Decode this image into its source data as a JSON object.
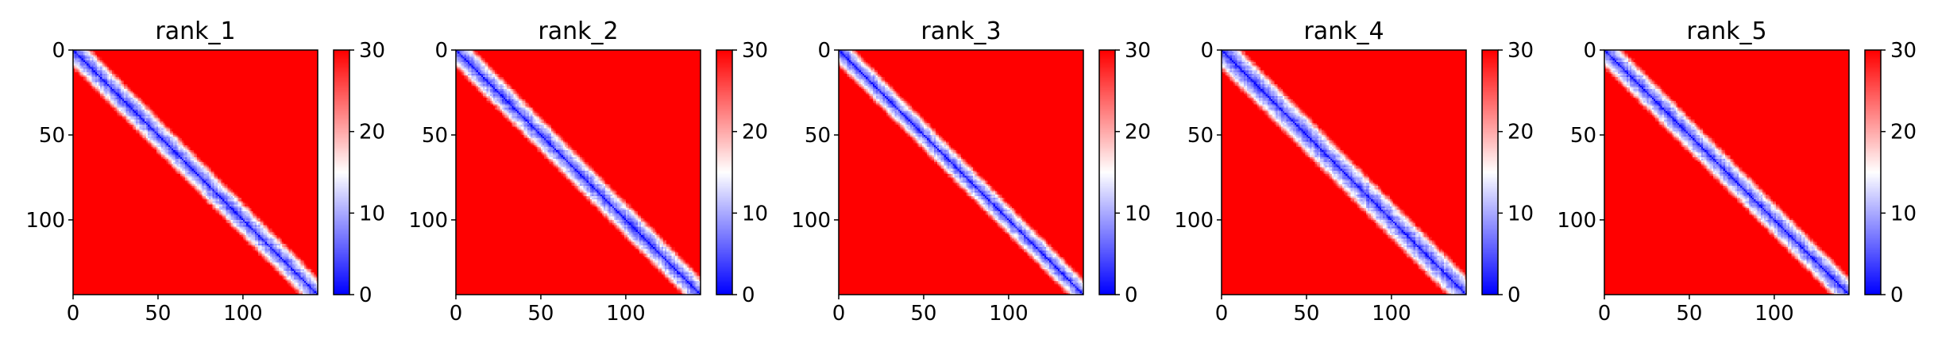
{
  "chart_data": [
    {
      "type": "heatmap",
      "title": "rank_1",
      "matrix_size": 144,
      "xlim": [
        0,
        144
      ],
      "ylim": [
        144,
        0
      ],
      "xticks": [
        "0",
        "50",
        "100"
      ],
      "xtick_values": [
        0,
        50,
        100
      ],
      "yticks": [
        "0",
        "50",
        "100"
      ],
      "ytick_values": [
        0,
        50,
        100
      ],
      "colorbar": {
        "min": 0,
        "max": 30,
        "ticks": [
          "0",
          "10",
          "20",
          "30"
        ],
        "tick_values": [
          0,
          10,
          20,
          30
        ],
        "colormap": [
          "#0000ff",
          "#ffffff",
          "#ff0000"
        ]
      },
      "diagonal_band_width": 7,
      "texture_seed": 11
    },
    {
      "type": "heatmap",
      "title": "rank_2",
      "matrix_size": 144,
      "xlim": [
        0,
        144
      ],
      "ylim": [
        144,
        0
      ],
      "xticks": [
        "0",
        "50",
        "100"
      ],
      "xtick_values": [
        0,
        50,
        100
      ],
      "yticks": [
        "0",
        "50",
        "100"
      ],
      "ytick_values": [
        0,
        50,
        100
      ],
      "colorbar": {
        "min": 0,
        "max": 30,
        "ticks": [
          "0",
          "10",
          "20",
          "30"
        ],
        "tick_values": [
          0,
          10,
          20,
          30
        ],
        "colormap": [
          "#0000ff",
          "#ffffff",
          "#ff0000"
        ]
      },
      "diagonal_band_width": 7,
      "texture_seed": 23
    },
    {
      "type": "heatmap",
      "title": "rank_3",
      "matrix_size": 144,
      "xlim": [
        0,
        144
      ],
      "ylim": [
        144,
        0
      ],
      "xticks": [
        "0",
        "50",
        "100"
      ],
      "xtick_values": [
        0,
        50,
        100
      ],
      "yticks": [
        "0",
        "50",
        "100"
      ],
      "ytick_values": [
        0,
        50,
        100
      ],
      "colorbar": {
        "min": 0,
        "max": 30,
        "ticks": [
          "0",
          "10",
          "20",
          "30"
        ],
        "tick_values": [
          0,
          10,
          20,
          30
        ],
        "colormap": [
          "#0000ff",
          "#ffffff",
          "#ff0000"
        ]
      },
      "diagonal_band_width": 6,
      "texture_seed": 37
    },
    {
      "type": "heatmap",
      "title": "rank_4",
      "matrix_size": 144,
      "xlim": [
        0,
        144
      ],
      "ylim": [
        144,
        0
      ],
      "xticks": [
        "0",
        "50",
        "100"
      ],
      "xtick_values": [
        0,
        50,
        100
      ],
      "yticks": [
        "0",
        "50",
        "100"
      ],
      "ytick_values": [
        0,
        50,
        100
      ],
      "colorbar": {
        "min": 0,
        "max": 30,
        "ticks": [
          "0",
          "10",
          "20",
          "30"
        ],
        "tick_values": [
          0,
          10,
          20,
          30
        ],
        "colormap": [
          "#0000ff",
          "#ffffff",
          "#ff0000"
        ]
      },
      "diagonal_band_width": 8,
      "texture_seed": 53
    },
    {
      "type": "heatmap",
      "title": "rank_5",
      "matrix_size": 144,
      "xlim": [
        0,
        144
      ],
      "ylim": [
        144,
        0
      ],
      "xticks": [
        "0",
        "50",
        "100"
      ],
      "xtick_values": [
        0,
        50,
        100
      ],
      "yticks": [
        "0",
        "50",
        "100"
      ],
      "ytick_values": [
        0,
        50,
        100
      ],
      "colorbar": {
        "min": 0,
        "max": 30,
        "ticks": [
          "0",
          "10",
          "20",
          "30"
        ],
        "tick_values": [
          0,
          10,
          20,
          30
        ],
        "colormap": [
          "#0000ff",
          "#ffffff",
          "#ff0000"
        ]
      },
      "diagonal_band_width": 7,
      "texture_seed": 71
    }
  ]
}
